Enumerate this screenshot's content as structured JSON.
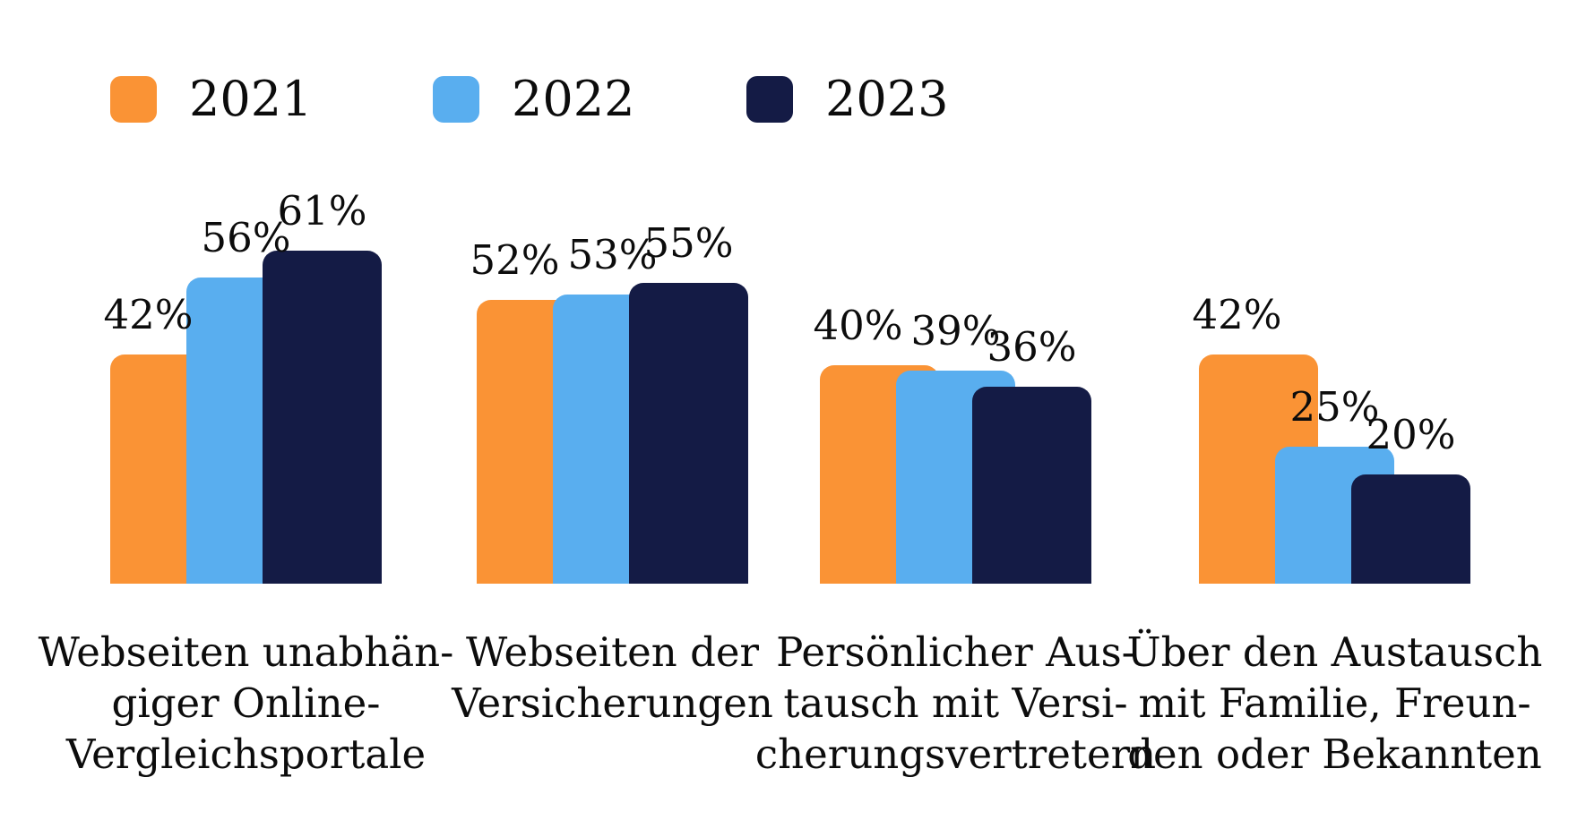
{
  "colors": {
    "background": "#FFFFFF",
    "text": "#0C0C0C",
    "series_2021": "#FA9335",
    "series_2022": "#59AEEF",
    "series_2023": "#141B45"
  },
  "legend": {
    "items": [
      {
        "label": "2021",
        "color": "#FA9335"
      },
      {
        "label": "2022",
        "color": "#59AEEF"
      },
      {
        "label": "2023",
        "color": "#141B45"
      }
    ]
  },
  "chart_data": {
    "type": "bar",
    "title": "",
    "value_suffix": "%",
    "value_labels": true,
    "grid": false,
    "axes_visible": false,
    "legend_position": "top-left",
    "ylim": [
      0,
      65
    ],
    "categories": [
      {
        "label": "Webseiten unabhängiger Online-Vergleichsportale",
        "display_lines": [
          "Webseiten unabhän-",
          "giger Online-",
          "Vergleichsportale"
        ]
      },
      {
        "label": "Webseiten der Versicherungen",
        "display_lines": [
          "Webseiten der",
          "Versicherungen"
        ]
      },
      {
        "label": "Persönlicher Austausch mit Versicherungsvertretern",
        "display_lines": [
          "Persönlicher Aus-",
          "tausch mit Versi-",
          "cherungsvertretern"
        ]
      },
      {
        "label": "Über den Austausch mit Familie, Freunden oder Bekannten",
        "display_lines": [
          "Über den Austausch",
          "mit Familie, Freun-",
          "den oder Bekannten"
        ]
      }
    ],
    "series": [
      {
        "name": "2021",
        "color": "#FA9335",
        "values": [
          42,
          52,
          40,
          42
        ]
      },
      {
        "name": "2022",
        "color": "#59AEEF",
        "values": [
          56,
          53,
          39,
          25
        ]
      },
      {
        "name": "2023",
        "color": "#141B45",
        "values": [
          61,
          55,
          36,
          20
        ]
      }
    ]
  }
}
